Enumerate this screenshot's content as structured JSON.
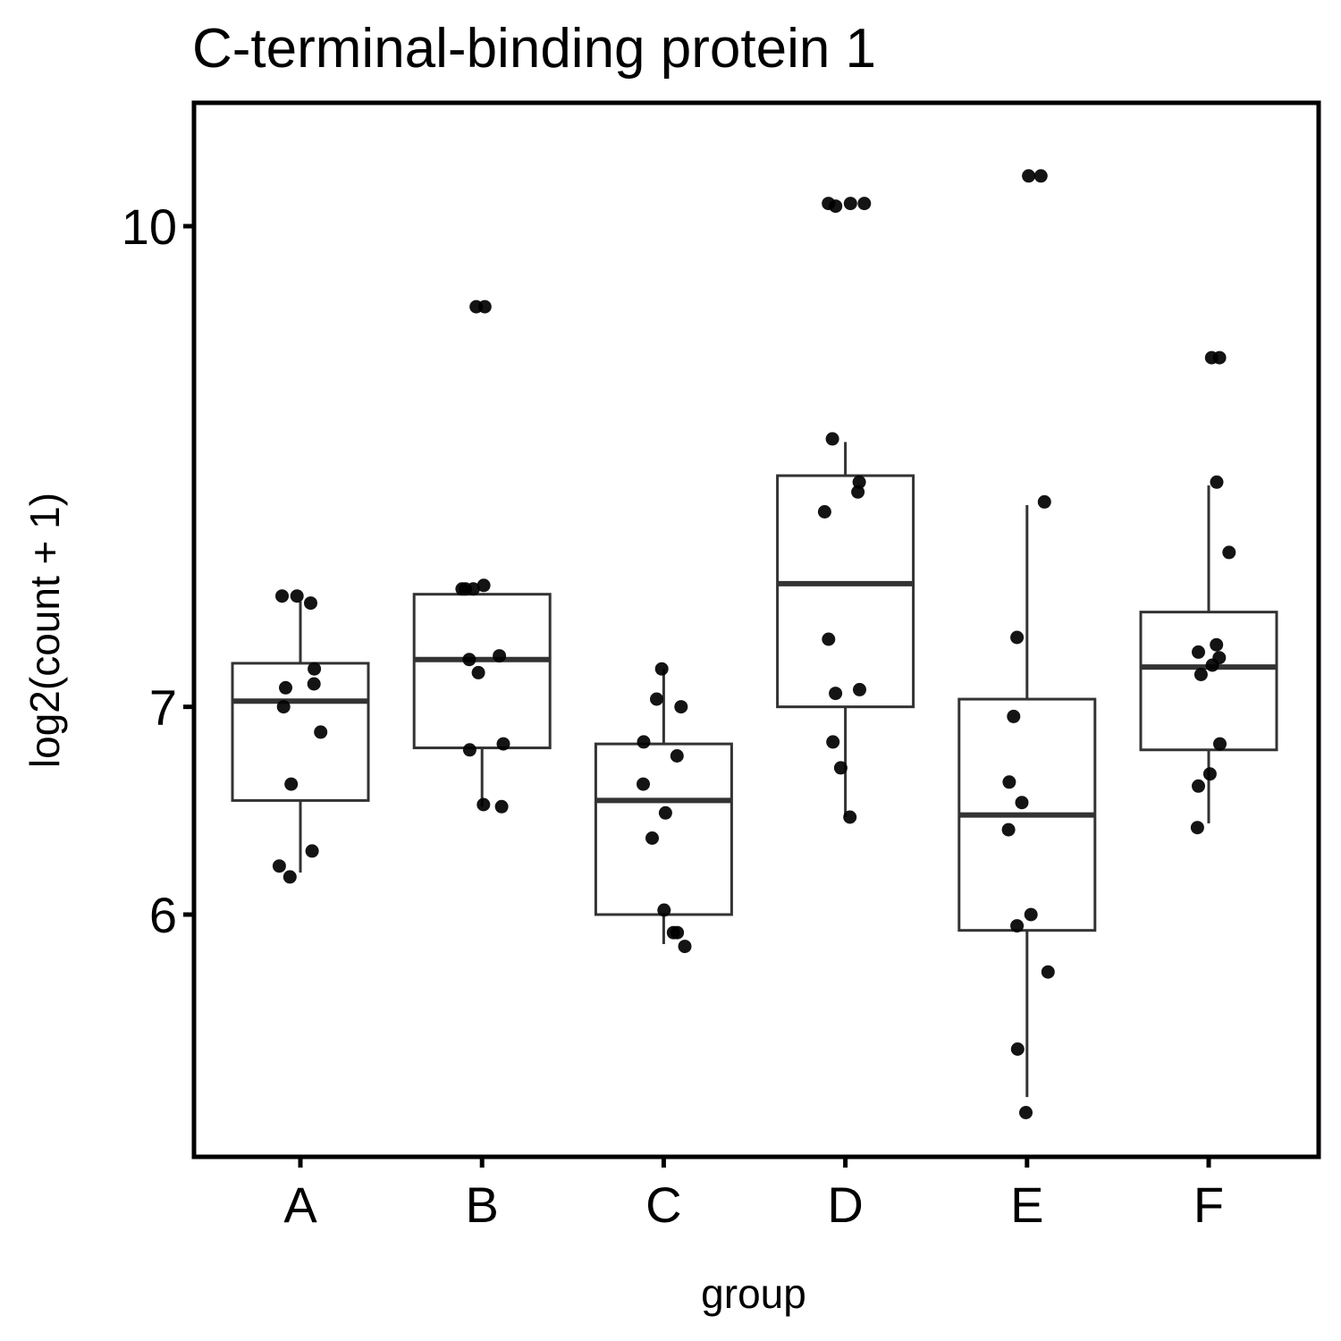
{
  "chart_data": {
    "type": "boxplot",
    "title": "C-terminal-binding protein 1",
    "xlabel": "group",
    "ylabel": "log2(count + 1)",
    "y_scale": "log",
    "ylim": [
      5.0,
      10.5
    ],
    "yticks": [
      6,
      7,
      10
    ],
    "ytick_labels": [
      "6",
      "7",
      "10"
    ],
    "categories": [
      "A",
      "B",
      "C",
      "D",
      "E",
      "F"
    ],
    "grid": false,
    "boxes": [
      {
        "group": "A",
        "whisker_low": 6.19,
        "q1": 6.53,
        "median": 7.03,
        "q3": 7.23,
        "whisker_high": 7.57
      },
      {
        "group": "B",
        "whisker_low": 6.5,
        "q1": 6.79,
        "median": 7.25,
        "q3": 7.61,
        "whisker_high": 7.61
      },
      {
        "group": "C",
        "whisker_low": 5.87,
        "q1": 6.0,
        "median": 6.53,
        "q3": 6.81,
        "whisker_high": 7.2
      },
      {
        "group": "D",
        "whisker_low": 6.45,
        "q1": 7.0,
        "median": 7.67,
        "q3": 8.31,
        "whisker_high": 8.52
      },
      {
        "group": "E",
        "whisker_low": 5.24,
        "q1": 5.93,
        "median": 6.46,
        "q3": 7.04,
        "whisker_high": 8.13
      },
      {
        "group": "F",
        "whisker_low": 6.42,
        "q1": 6.78,
        "median": 7.21,
        "q3": 7.51,
        "whisker_high": 8.25
      }
    ],
    "points": [
      {
        "group": "A",
        "y": [
          7.56,
          7.6,
          7.6,
          7.2,
          7.1,
          7.12,
          7.0,
          6.87,
          6.61,
          6.29,
          6.22,
          6.17
        ]
      },
      {
        "group": "B",
        "y": [
          9.42,
          9.42,
          7.64,
          7.66,
          7.64,
          7.64,
          7.27,
          7.25,
          7.18,
          6.81,
          6.78,
          6.51,
          6.5
        ]
      },
      {
        "group": "C",
        "y": [
          7.2,
          7.04,
          7.0,
          6.82,
          6.75,
          6.61,
          6.47,
          6.35,
          6.02,
          5.92,
          5.92,
          5.86
        ]
      },
      {
        "group": "D",
        "y": [
          10.15,
          10.17,
          10.17,
          10.17,
          8.54,
          8.27,
          8.21,
          8.09,
          7.36,
          7.07,
          7.09,
          6.82,
          6.69,
          6.45
        ]
      },
      {
        "group": "E",
        "y": [
          10.38,
          10.38,
          8.15,
          7.37,
          6.95,
          6.62,
          6.52,
          6.39,
          6.0,
          5.95,
          5.75,
          5.43,
          5.18
        ]
      },
      {
        "group": "F",
        "y": [
          9.07,
          9.07,
          8.27,
          7.85,
          7.33,
          7.29,
          7.26,
          7.22,
          7.17,
          6.81,
          6.66,
          6.6,
          6.4
        ]
      }
    ]
  }
}
